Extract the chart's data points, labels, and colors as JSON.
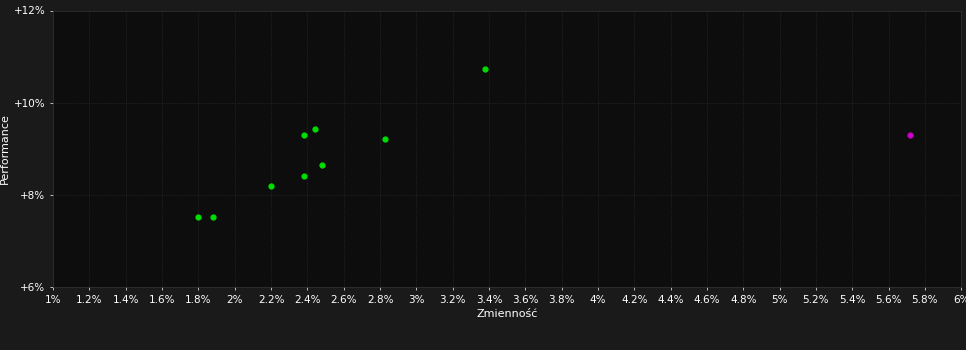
{
  "background_color": "#1a1a1a",
  "plot_bg_color": "#0d0d0d",
  "grid_color": "#2a2a2a",
  "xlabel": "Zmienność",
  "ylabel": "Performance",
  "tick_color": "#ffffff",
  "label_color": "#ffffff",
  "xlim": [
    0.01,
    0.06
  ],
  "ylim": [
    0.06,
    0.12
  ],
  "xticks": [
    0.01,
    0.012,
    0.014,
    0.016,
    0.018,
    0.02,
    0.022,
    0.024,
    0.026,
    0.028,
    0.03,
    0.032,
    0.034,
    0.036,
    0.038,
    0.04,
    0.042,
    0.044,
    0.046,
    0.048,
    0.05,
    0.052,
    0.054,
    0.056,
    0.058,
    0.06
  ],
  "yticks": [
    0.06,
    0.08,
    0.1,
    0.12
  ],
  "green_points": [
    [
      0.018,
      0.0752
    ],
    [
      0.0188,
      0.0752
    ],
    [
      0.022,
      0.082
    ],
    [
      0.0238,
      0.084
    ],
    [
      0.0238,
      0.093
    ],
    [
      0.0244,
      0.0942
    ],
    [
      0.0248,
      0.0865
    ],
    [
      0.0283,
      0.0922
    ],
    [
      0.0338,
      0.1072
    ]
  ],
  "magenta_points": [
    [
      0.0572,
      0.093
    ]
  ],
  "green_color": "#00dd00",
  "magenta_color": "#cc00cc",
  "dot_size": 12,
  "font_size_labels": 8,
  "font_size_ticks": 7.5,
  "font_size_axis_label": 8
}
